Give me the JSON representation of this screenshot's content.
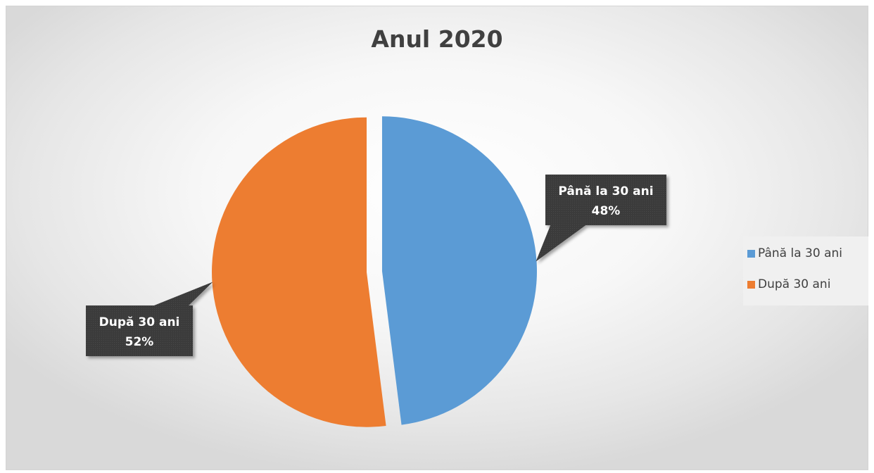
{
  "chart_data": {
    "type": "pie",
    "title": "Anul 2020",
    "categories": [
      "Până la 30 ani",
      "După 30 ani"
    ],
    "values": [
      48,
      52
    ],
    "unit": "%",
    "data_labels": [
      {
        "category": "Până la 30 ani",
        "value": "48%"
      },
      {
        "category": "După 30 ani",
        "value": "52%"
      }
    ],
    "colors": [
      "#5b9bd5",
      "#ed7d31"
    ],
    "exploded": true,
    "legend_position": "right"
  }
}
